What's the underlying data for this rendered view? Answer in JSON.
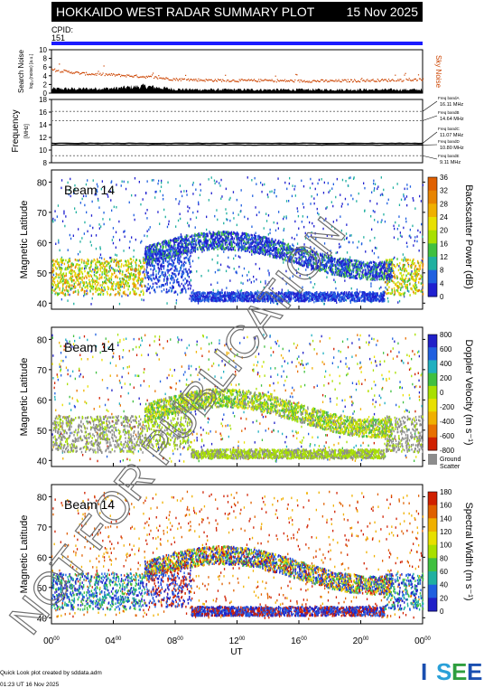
{
  "header": {
    "title": "HOKKAIDO WEST RADAR SUMMARY PLOT",
    "date": "15 Nov 2025",
    "cpid_label": "CPID:",
    "cpid_value": "151"
  },
  "noise_panel": {
    "ylabel": "Search Noise",
    "ylabel_sub": "log₁₀(noise) [a.u.]",
    "yticks": [
      "10",
      "8",
      "6",
      "4",
      "2",
      "0"
    ],
    "side_label": "Sky Noise",
    "color_sky": "#cc4400",
    "color_search": "#000000"
  },
  "frequency_panel": {
    "ylabel": "Frequency",
    "unit": "[MHz]",
    "yticks": [
      "18",
      "16",
      "14",
      "12",
      "10",
      "8"
    ],
    "bands": [
      {
        "name": "Freq bandA",
        "value": "16.11 MHz"
      },
      {
        "name": "Freq bandB",
        "value": "14.64 MHz"
      },
      {
        "name": "Freq bandC",
        "value": "11.07 MHz"
      },
      {
        "name": "Freq bandD",
        "value": "10.80 MHz"
      },
      {
        "name": "Freq bandE",
        "value": "9.11 MHz"
      }
    ]
  },
  "panels": [
    {
      "beam_label": "Beam 14",
      "ylabel": "Magnetic Latitude",
      "yticks": [
        "80",
        "70",
        "60",
        "50",
        "40"
      ],
      "colorbar_title": "Backscatter Power (dB)",
      "colorbar_ticks": [
        "36",
        "32",
        "28",
        "24",
        "20",
        "16",
        "12",
        "8",
        "4",
        "0"
      ],
      "colorbar_colors": [
        "#e06000",
        "#e88400",
        "#f0b000",
        "#e8e000",
        "#a8e000",
        "#40c040",
        "#20b0a0",
        "#2060e0",
        "#2020d0"
      ]
    },
    {
      "beam_label": "Beam 14",
      "ylabel": "Magnetic Latitude",
      "yticks": [
        "80",
        "70",
        "60",
        "50",
        "40"
      ],
      "colorbar_title": "Doppler Velocity (m s⁻¹)",
      "colorbar_ticks": [
        "800",
        "600",
        "400",
        "200",
        "0",
        "-200",
        "-400",
        "-600",
        "-800"
      ],
      "colorbar_colors": [
        "#2020c8",
        "#2060e0",
        "#20b0c0",
        "#40c040",
        "#a8e000",
        "#e8e000",
        "#f0b000",
        "#e87000",
        "#d02000"
      ],
      "ground_scatter_label": "Ground Scatter",
      "ground_scatter_color": "#8c8c8c"
    },
    {
      "beam_label": "Beam 14",
      "ylabel": "Magnetic Latitude",
      "yticks": [
        "80",
        "70",
        "60",
        "50",
        "40"
      ],
      "colorbar_title": "Spectral Width (m s⁻¹)",
      "colorbar_ticks": [
        "180",
        "160",
        "140",
        "120",
        "100",
        "80",
        "60",
        "40",
        "20",
        "0"
      ],
      "colorbar_colors": [
        "#d02000",
        "#e06000",
        "#f0b000",
        "#e8e000",
        "#a8e000",
        "#40c040",
        "#20b0a0",
        "#2060e0",
        "#2020c8"
      ]
    }
  ],
  "xaxis": {
    "label": "UT",
    "ticks": [
      {
        "h": "00",
        "m": "00"
      },
      {
        "h": "04",
        "m": "00"
      },
      {
        "h": "08",
        "m": "00"
      },
      {
        "h": "12",
        "m": "00"
      },
      {
        "h": "16",
        "m": "00"
      },
      {
        "h": "20",
        "m": "00"
      },
      {
        "h": "00",
        "m": "00"
      }
    ]
  },
  "watermark": "NOT FOR PUBLICATION",
  "footer": {
    "credit": "Quick Look plot created by sddata.adm",
    "timestamp": "01:23 UT 16 Nov 2025",
    "logo": "ISEE",
    "logo_colors": [
      "#1a4fb0",
      "#2aa0d8",
      "#2e9e3e",
      "#1a4fb0"
    ]
  },
  "chart_data": [
    {
      "type": "scatter",
      "title": "Search Noise",
      "xlabel": "UT",
      "ylabel": "Search Noise",
      "xlim": [
        0,
        24
      ],
      "ylim": [
        0,
        10
      ],
      "series": [
        {
          "name": "Sky Noise",
          "x": [
            0,
            2,
            4,
            6,
            8,
            10,
            12,
            14,
            16,
            18,
            20,
            22,
            24
          ],
          "values": [
            5.5,
            4.6,
            4.3,
            3.9,
            3.3,
            3.1,
            3.0,
            3.0,
            2.9,
            2.9,
            3.0,
            3.1,
            3.2
          ]
        },
        {
          "x": [
            0,
            2,
            4,
            6,
            8,
            10,
            12,
            14,
            16,
            18,
            20,
            22,
            24
          ],
          "values": [
            1.0,
            1.0,
            1.1,
            1.6,
            0.9,
            0.8,
            0.8,
            0.8,
            0.8,
            0.8,
            0.8,
            0.8,
            0.8
          ]
        }
      ]
    },
    {
      "type": "line",
      "title": "Frequency",
      "xlabel": "UT",
      "ylabel": "Frequency",
      "xlim": [
        0,
        24
      ],
      "ylim": [
        8,
        18
      ],
      "series": [
        {
          "x": [
            0,
            24
          ],
          "values": [
            10.8,
            10.8
          ]
        },
        {
          "x": [
            0,
            24
          ],
          "values": [
            11.07,
            11.07
          ]
        }
      ]
    },
    {
      "type": "heatmap",
      "title": "Beam 14",
      "xlabel": "UT",
      "ylabel": "Magnetic Latitude",
      "xlim": [
        0,
        24
      ],
      "ylim": [
        38,
        84
      ],
      "colorbar": "Backscatter Power (dB)",
      "zlim": [
        0,
        36
      ]
    },
    {
      "type": "heatmap",
      "title": "Beam 14",
      "xlabel": "UT",
      "ylabel": "Magnetic Latitude",
      "xlim": [
        0,
        24
      ],
      "ylim": [
        38,
        84
      ],
      "colorbar": "Doppler Velocity (m s⁻¹)",
      "zlim": [
        -800,
        800
      ]
    },
    {
      "type": "heatmap",
      "title": "Beam 14",
      "xlabel": "UT",
      "ylabel": "Magnetic Latitude",
      "xlim": [
        0,
        24
      ],
      "ylim": [
        38,
        84
      ],
      "colorbar": "Spectral Width (m s⁻¹)",
      "zlim": [
        0,
        180
      ]
    }
  ]
}
